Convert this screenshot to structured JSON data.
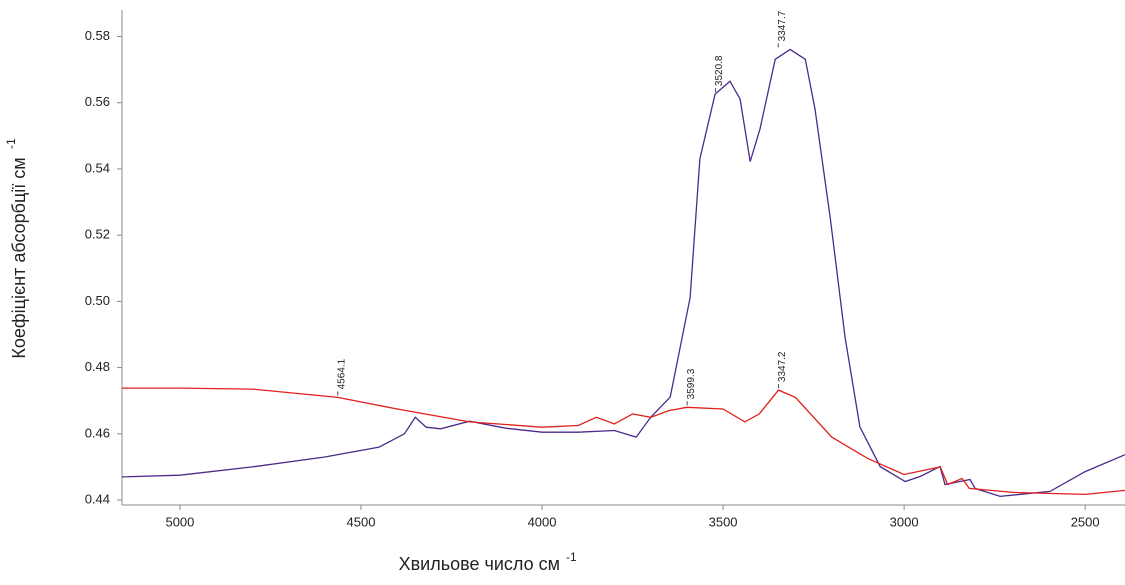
{
  "chart_data": {
    "type": "line",
    "xlabel": "Хвильове число см",
    "xlabel_sup": "-1",
    "ylabel": "Коефіцієнт абсорбції см",
    "ylabel_sup": "-1",
    "xlim": [
      5160,
      2390
    ],
    "ylim": [
      0.4385,
      0.588
    ],
    "xticks": [
      5000,
      4500,
      4000,
      3500,
      3000,
      2500
    ],
    "yticks": [
      0.44,
      0.46,
      0.48,
      {
        "value": 0.5,
        "label": "0.50"
      },
      0.52,
      0.54,
      0.56,
      0.58
    ],
    "series": [
      {
        "color": "#4b2a8c",
        "x": [
          5160,
          5000,
          4800,
          4600,
          4450,
          4380,
          4350,
          4320,
          4280,
          4200,
          4100,
          4000,
          3900,
          3800,
          3740,
          3700,
          3646,
          3591,
          3564,
          3522,
          3481,
          3453,
          3425,
          3398,
          3356,
          3315,
          3273,
          3246,
          3204,
          3163,
          3122,
          3066,
          2997,
          2956,
          2901,
          2887,
          2818,
          2804,
          2735,
          2597,
          2500,
          2390
        ],
        "values": [
          0.447,
          0.4475,
          0.45,
          0.453,
          0.456,
          0.46,
          0.465,
          0.462,
          0.4615,
          0.4638,
          0.4617,
          0.4605,
          0.4605,
          0.461,
          0.459,
          0.465,
          0.4711,
          0.5011,
          0.5431,
          0.5626,
          0.5665,
          0.5611,
          0.5422,
          0.5521,
          0.5731,
          0.5761,
          0.5731,
          0.5581,
          0.5251,
          0.4891,
          0.4621,
          0.4501,
          0.4456,
          0.4471,
          0.4501,
          0.4447,
          0.4462,
          0.4435,
          0.4411,
          0.4426,
          0.4486,
          0.4537
        ]
      },
      {
        "color": "#e0201c",
        "x": [
          5160,
          5000,
          4800,
          4564,
          4400,
          4200,
          4000,
          3900,
          3850,
          3800,
          3750,
          3700,
          3650,
          3600,
          3500,
          3440,
          3400,
          3347,
          3300,
          3200,
          3100,
          3000,
          2900,
          2880,
          2840,
          2820,
          2700,
          2500,
          2390
        ],
        "values": [
          0.4738,
          0.4738,
          0.4735,
          0.471,
          0.4675,
          0.4636,
          0.462,
          0.4625,
          0.465,
          0.463,
          0.466,
          0.465,
          0.467,
          0.468,
          0.4675,
          0.4636,
          0.466,
          0.4732,
          0.471,
          0.459,
          0.4525,
          0.4477,
          0.45,
          0.4447,
          0.4465,
          0.4435,
          0.4423,
          0.4417,
          0.4429
        ]
      }
    ],
    "annotations": [
      {
        "label": "4564.1",
        "x": 4564.1,
        "y": 0.471
      },
      {
        "label": "3599.3",
        "x": 3599.3,
        "y": 0.468
      },
      {
        "label": "3347.2",
        "x": 3347.2,
        "y": 0.4732
      },
      {
        "label": "3520.8",
        "x": 3520.8,
        "y": 0.5626
      },
      {
        "label": "3347.7",
        "x": 3347.7,
        "y": 0.5761
      }
    ]
  }
}
